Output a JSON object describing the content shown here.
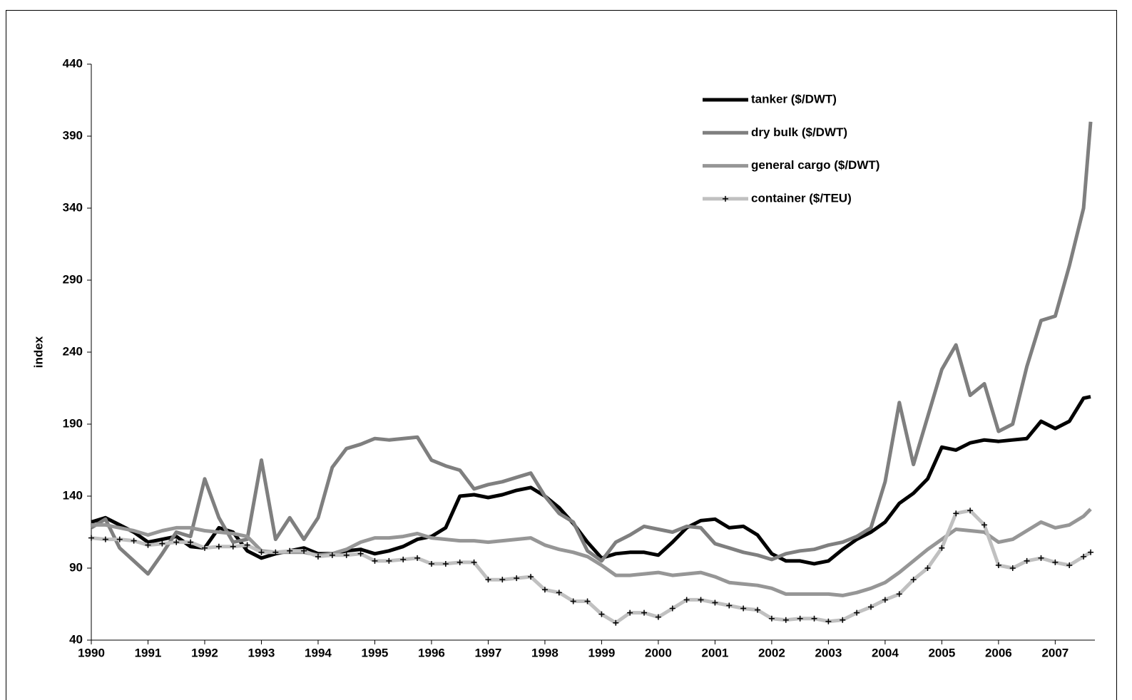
{
  "chart_data": {
    "type": "line",
    "y_label": "index",
    "legend": "top-right",
    "x": [
      1990,
      1990.25,
      1990.5,
      1990.75,
      1991,
      1991.25,
      1991.5,
      1991.75,
      1992,
      1992.25,
      1992.5,
      1992.75,
      1993,
      1993.25,
      1993.5,
      1993.75,
      1994,
      1994.25,
      1994.5,
      1994.75,
      1995,
      1995.25,
      1995.5,
      1995.75,
      1996,
      1996.25,
      1996.5,
      1996.75,
      1997,
      1997.25,
      1997.5,
      1997.75,
      1998,
      1998.25,
      1998.5,
      1998.75,
      1999,
      1999.25,
      1999.5,
      1999.75,
      2000,
      2000.25,
      2000.5,
      2000.75,
      2001,
      2001.25,
      2001.5,
      2001.75,
      2002,
      2002.25,
      2002.5,
      2002.75,
      2003,
      2003.25,
      2003.5,
      2003.75,
      2004,
      2004.25,
      2004.5,
      2004.75,
      2005,
      2005.25,
      2005.5,
      2005.75,
      2006,
      2006.25,
      2006.5,
      2006.75,
      2007,
      2007.25,
      2007.5,
      2007.625
    ],
    "series": [
      {
        "name": "tanker ($/DWT)",
        "color": "#000000",
        "values": [
          122,
          125,
          120,
          115,
          108,
          110,
          112,
          105,
          104,
          118,
          115,
          102,
          97,
          100,
          102,
          104,
          100,
          100,
          102,
          103,
          100,
          102,
          105,
          110,
          112,
          118,
          140,
          141,
          139,
          141,
          144,
          146,
          140,
          132,
          121,
          108,
          97,
          100,
          101,
          101,
          99,
          108,
          118,
          123,
          124,
          118,
          119,
          113,
          100,
          95,
          95,
          93,
          95,
          103,
          110,
          115,
          122,
          135,
          142,
          152,
          174,
          172,
          177,
          179,
          178,
          179,
          180,
          192,
          187,
          192,
          208,
          209
        ]
      },
      {
        "name": "dry bulk ($/DWT)",
        "color": "#7f7f7f",
        "values": [
          118,
          124,
          104,
          95,
          86,
          100,
          115,
          112,
          152,
          125,
          108,
          110,
          165,
          110,
          125,
          110,
          125,
          160,
          173,
          176,
          180,
          179,
          180,
          181,
          165,
          161,
          158,
          145,
          148,
          150,
          153,
          156,
          140,
          128,
          122,
          102,
          95,
          108,
          113,
          119,
          117,
          115,
          119,
          118,
          107,
          104,
          101,
          99,
          96,
          100,
          102,
          103,
          106,
          108,
          112,
          118,
          150,
          205,
          162,
          195,
          228,
          245,
          210,
          218,
          185,
          190,
          230,
          262,
          265,
          300,
          340,
          400
        ]
      },
      {
        "name": "general cargo ($/DWT)",
        "color": "#969696",
        "values": [
          120,
          120,
          118,
          116,
          113,
          116,
          118,
          118,
          116,
          115,
          114,
          112,
          102,
          101,
          101,
          101,
          99,
          100,
          103,
          108,
          111,
          111,
          112,
          114,
          111,
          110,
          109,
          109,
          108,
          109,
          110,
          111,
          106,
          103,
          101,
          98,
          92,
          85,
          85,
          86,
          87,
          85,
          86,
          87,
          84,
          80,
          79,
          78,
          76,
          72,
          72,
          72,
          72,
          71,
          73,
          76,
          80,
          87,
          95,
          103,
          110,
          117,
          116,
          115,
          108,
          110,
          116,
          122,
          118,
          120,
          126,
          131
        ]
      },
      {
        "name": "container ($/TEU)",
        "color": "#c0c0c0",
        "marker": "plus",
        "values": [
          111,
          110,
          110,
          109,
          106,
          107,
          108,
          108,
          104,
          105,
          105,
          106,
          101,
          101,
          102,
          102,
          98,
          99,
          99,
          100,
          95,
          95,
          96,
          97,
          93,
          93,
          94,
          94,
          82,
          82,
          83,
          84,
          75,
          73,
          67,
          67,
          58,
          52,
          59,
          59,
          56,
          62,
          68,
          68,
          66,
          64,
          62,
          61,
          55,
          54,
          55,
          55,
          53,
          54,
          59,
          63,
          68,
          72,
          82,
          90,
          104,
          128,
          130,
          120,
          92,
          90,
          95,
          97,
          94,
          92,
          98,
          101
        ]
      }
    ],
    "xlim": [
      1990,
      2007.7
    ],
    "xticks": [
      1990,
      1991,
      1992,
      1993,
      1994,
      1995,
      1996,
      1997,
      1998,
      1999,
      2000,
      2001,
      2002,
      2003,
      2004,
      2005,
      2006,
      2007
    ],
    "ylim": [
      40,
      440
    ],
    "yticks": [
      40,
      90,
      140,
      190,
      240,
      290,
      340,
      390,
      440
    ]
  }
}
